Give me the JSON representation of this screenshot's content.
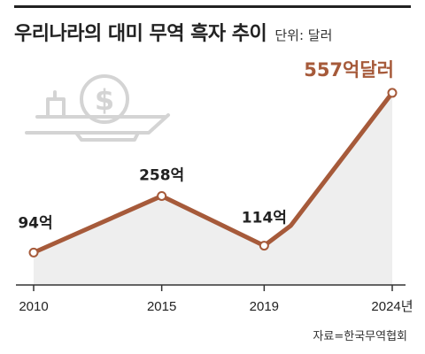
{
  "header": {
    "title": "우리나라의 대미 무역 흑자 추이",
    "unit": "단위: 달러"
  },
  "chart_data": {
    "type": "line",
    "title": "우리나라의 대미 무역 흑자 추이",
    "ylabel": "",
    "xlabel": "",
    "x": [
      2010,
      2015,
      2019,
      2024
    ],
    "x_tick_labels": [
      "2010",
      "2015",
      "2019",
      "2024년"
    ],
    "values": [
      94,
      258,
      114,
      557
    ],
    "data_labels": [
      "94억",
      "258억",
      "114억",
      "557억달러"
    ],
    "ylim": [
      0,
      600
    ],
    "grid": false,
    "legend": "none",
    "colors": {
      "line": "#a65a3a",
      "marker_fill": "#ffffff",
      "area": "#eeeeee",
      "axis": "#333333",
      "text": "#222222",
      "highlight_label": "#a65a3a",
      "icon": "#d4d4d4"
    }
  },
  "decor": {
    "icon": "dollar-coin-ship-icon"
  },
  "source": "자료=한국무역협회"
}
